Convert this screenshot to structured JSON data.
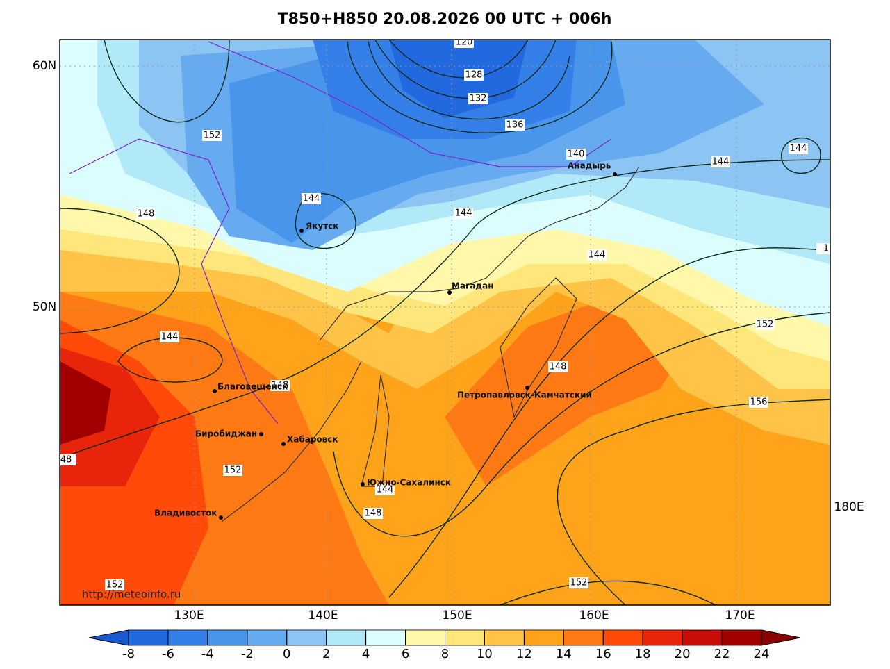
{
  "title": "T850+H850 20.08.2026 00 UTC + 006h",
  "lat_labels": [
    "60N",
    "50N"
  ],
  "lon_labels": [
    "130E",
    "140E",
    "150E",
    "160E",
    "170E",
    "180E"
  ],
  "cities": [
    "Якутск",
    "Анадырь",
    "Магадан",
    "Благовещенск",
    "Биробиджан",
    "Хабаровск",
    "Петропавловск-Камчатский",
    "Южно-Сахалинск",
    "Владивосток"
  ],
  "contour_labels": [
    120,
    128,
    132,
    136,
    140,
    144,
    144,
    152,
    144,
    148,
    144,
    144,
    1,
    152,
    144,
    148,
    148,
    156,
    48,
    152,
    144,
    148,
    152,
    152
  ],
  "source": "http://meteoinfo.ru",
  "colorbar": {
    "ticks": [
      -8,
      -6,
      -4,
      -2,
      0,
      2,
      4,
      6,
      8,
      10,
      12,
      14,
      16,
      18,
      20,
      22,
      24
    ],
    "colors": [
      "#1a5ad0",
      "#2269e0",
      "#3580e8",
      "#4a95ec",
      "#66aaef",
      "#8cc4f4",
      "#b2e9f8",
      "#dcfdfd",
      "#fff8aa",
      "#ffe67a",
      "#ffc348",
      "#ffa31a",
      "#ff7a14",
      "#ff4a0a",
      "#e8240a",
      "#c80c08",
      "#a00000",
      "#8a0000"
    ]
  }
}
